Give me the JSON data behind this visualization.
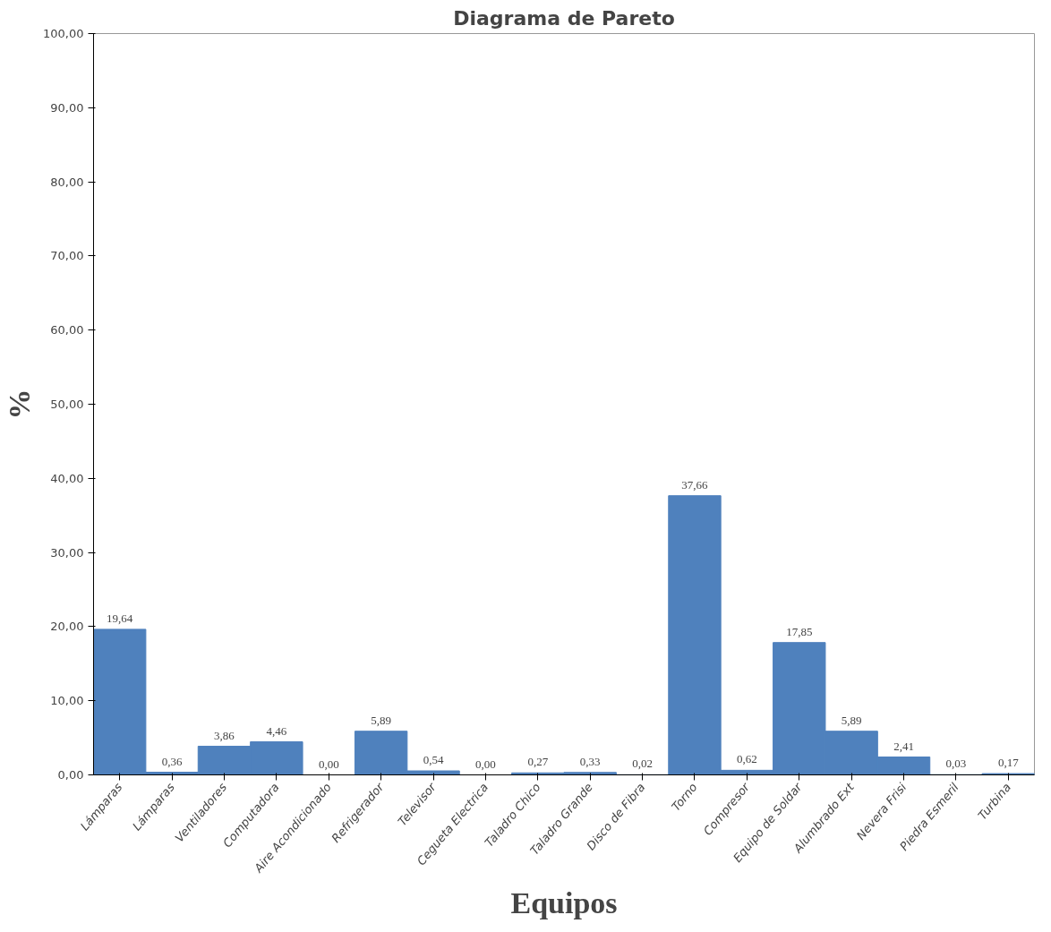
{
  "chart_data": {
    "type": "bar",
    "title": "Diagrama de Pareto",
    "xlabel": "Equipos",
    "ylabel": "%",
    "categories": [
      "Lámparas",
      "Lámparas",
      "Ventiladores",
      "Computadora",
      "Aire Acondicionado",
      "Refrigerador",
      "Televisor",
      "Cegueta Electrica",
      "Taladro Chico",
      "Taladro Grande",
      "Disco de Fibra",
      "Torno",
      "Compresor",
      "Equipo de Soldar",
      "Alumbrado Ext",
      "Nevera Frisi",
      "Piedra Esmeril",
      "Turbina"
    ],
    "values": [
      19.64,
      0.36,
      3.86,
      4.46,
      0.0,
      5.89,
      0.54,
      0.0,
      0.27,
      0.33,
      0.02,
      37.66,
      0.62,
      17.85,
      5.89,
      2.41,
      0.03,
      0.17
    ],
    "value_labels": [
      "19,64",
      "0,36",
      "3,86",
      "4,46",
      "0,00",
      "5,89",
      "0,54",
      "0,00",
      "0,27",
      "0,33",
      "0,02",
      "37,66",
      "0,62",
      "17,85",
      "5,89",
      "2,41",
      "0,03",
      "0,17"
    ],
    "color": "#4f81bd",
    "ylim": [
      0,
      100
    ],
    "yticks": [
      {
        "value": 0,
        "label": "0,00"
      },
      {
        "value": 10,
        "label": "10,00"
      },
      {
        "value": 20,
        "label": "20,00"
      },
      {
        "value": 30,
        "label": "30,00"
      },
      {
        "value": 40,
        "label": "40,00"
      },
      {
        "value": 50,
        "label": "50,00"
      },
      {
        "value": 60,
        "label": "60,00"
      },
      {
        "value": 70,
        "label": "70,00"
      },
      {
        "value": 80,
        "label": "80,00"
      },
      {
        "value": 90,
        "label": "90,00"
      },
      {
        "value": 100,
        "label": "100,00"
      }
    ],
    "grid": false
  }
}
